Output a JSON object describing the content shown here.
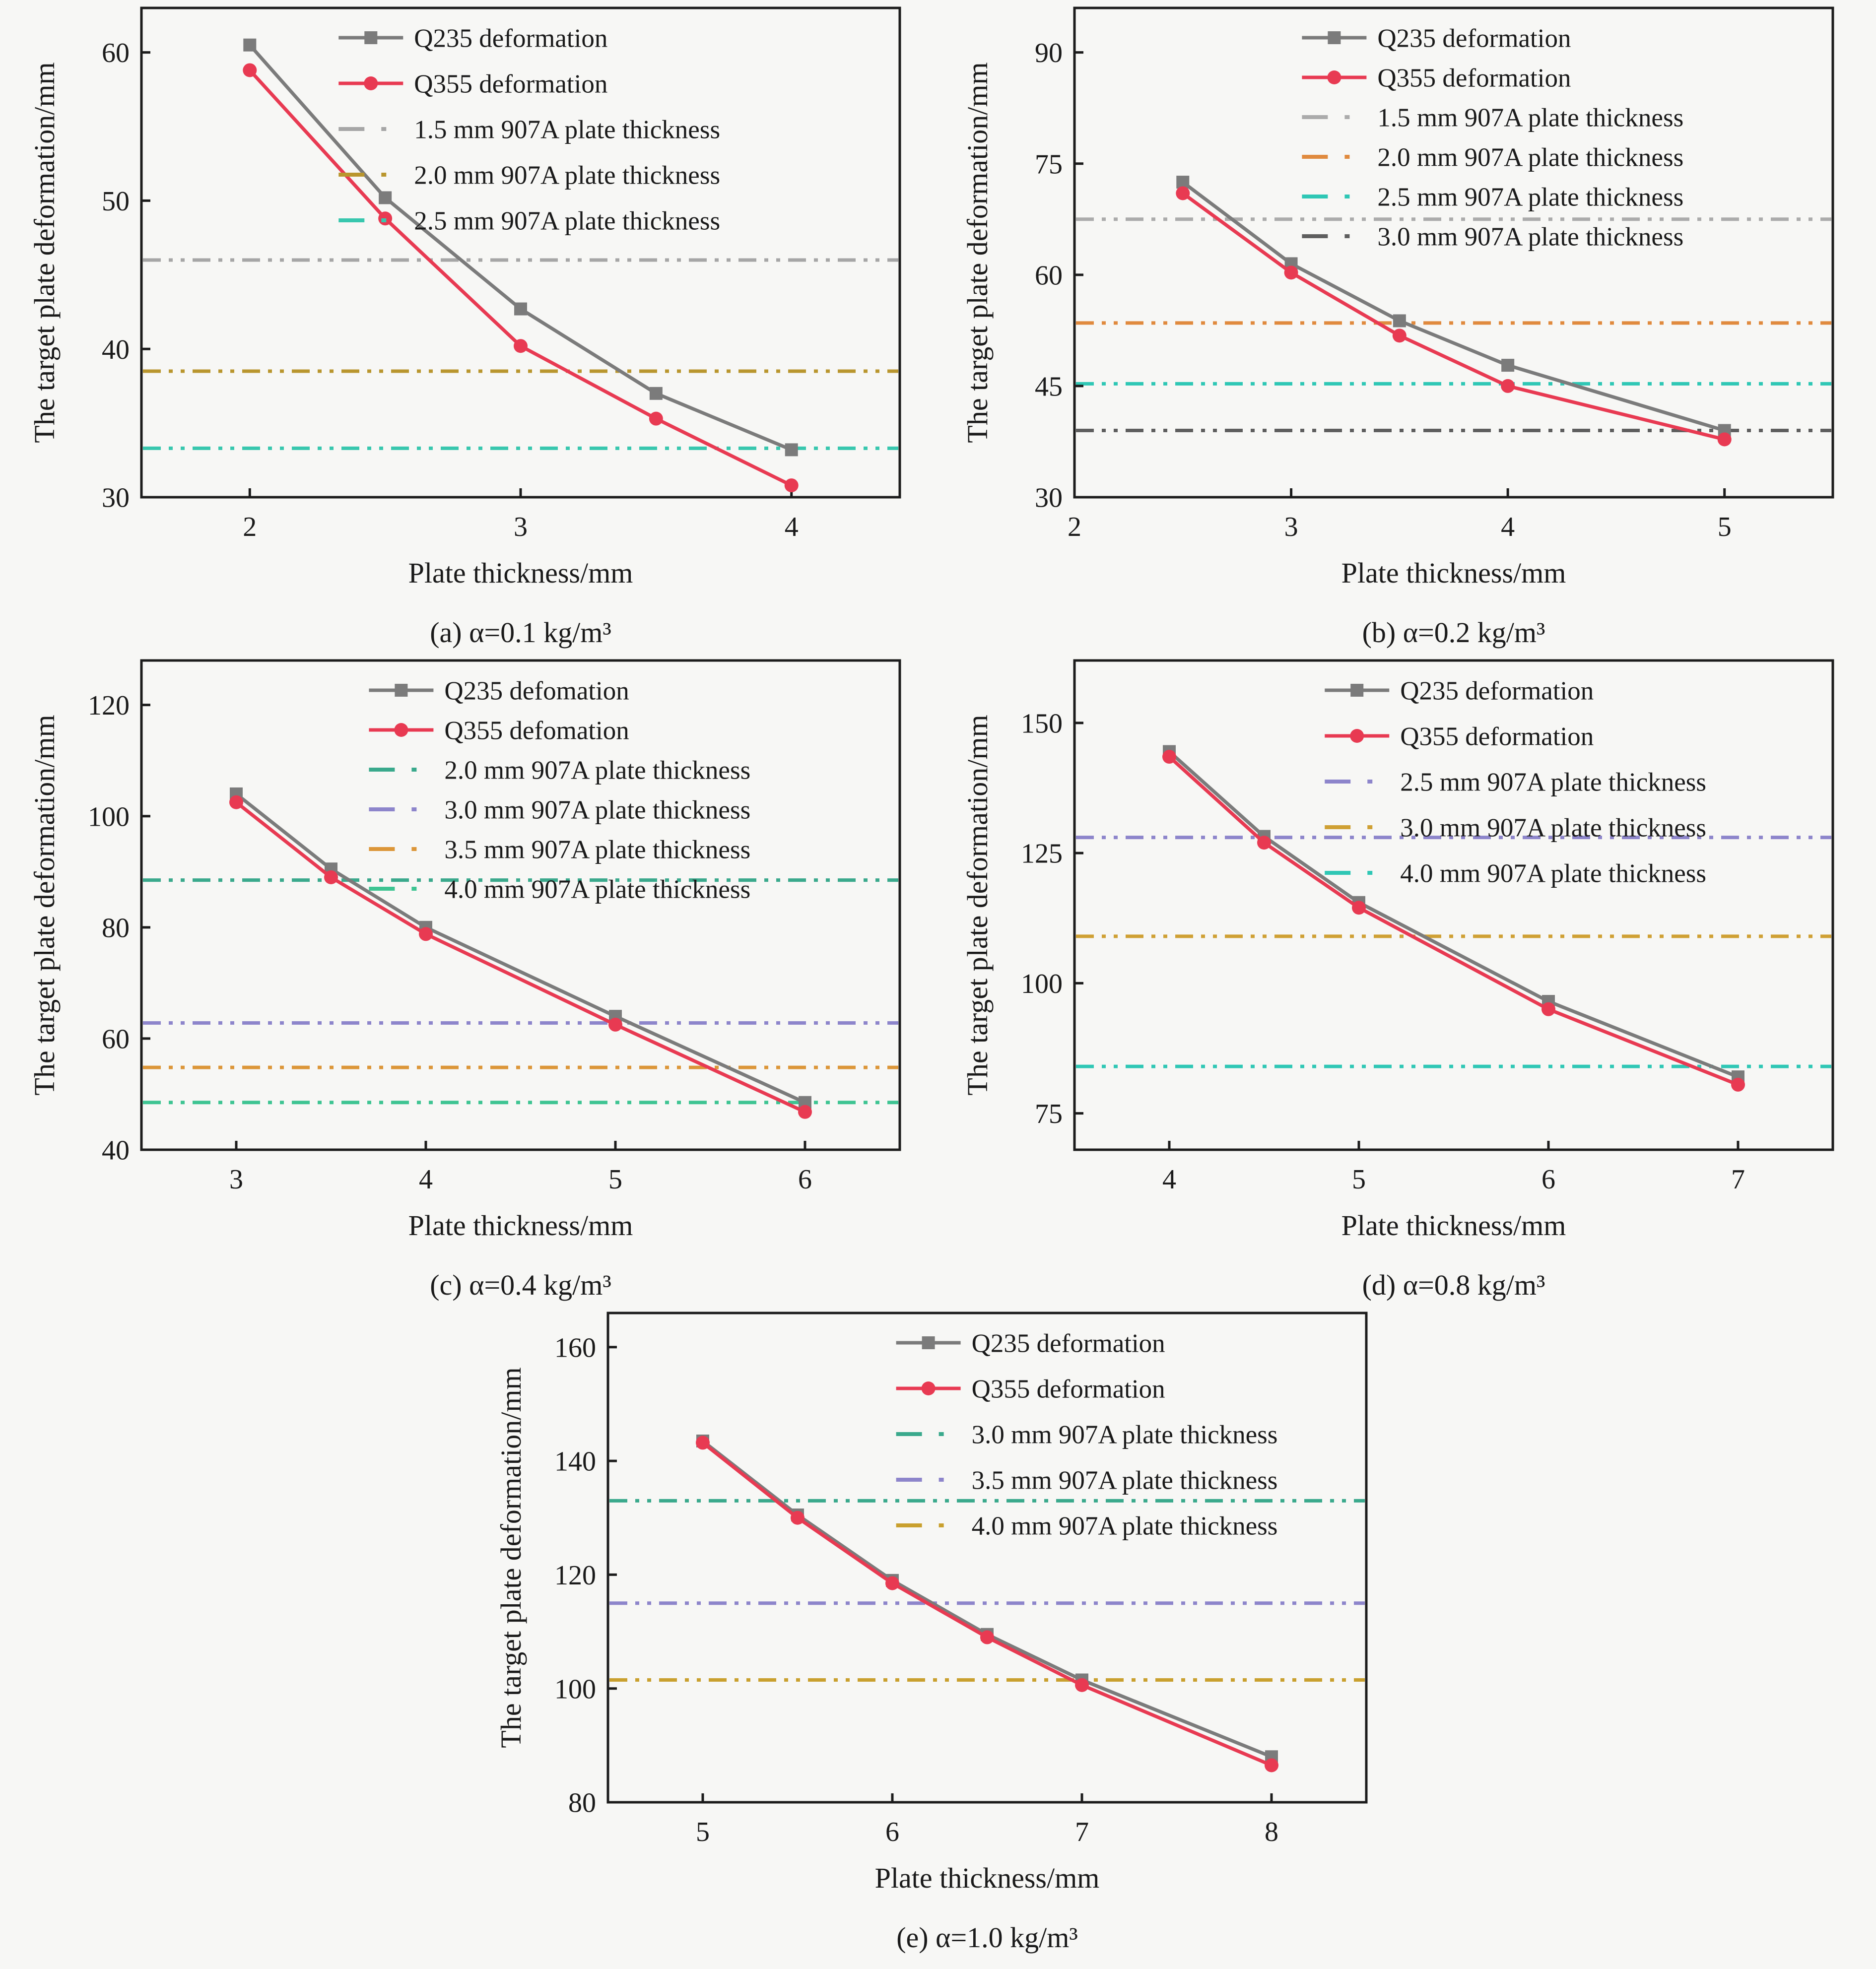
{
  "figure": {
    "xlabel": "Plate thickness/mm",
    "ylabel": "The target plate deformation/mm"
  },
  "chart_data": [
    {
      "id": "a",
      "type": "line",
      "caption": "(a) α=0.1 kg/m³",
      "xlabel": "Plate thickness/mm",
      "ylabel": "The target plate deformation/mm",
      "xlim": [
        1.6,
        4.4
      ],
      "ylim": [
        30,
        63
      ],
      "xticks": [
        2,
        3,
        4
      ],
      "yticks": [
        30,
        40,
        50,
        60
      ],
      "grid": false,
      "legend_position": "upper-center-inside",
      "legend_x": 0.26,
      "series": [
        {
          "name": "Q235 deformation",
          "color": "#7b7b7b",
          "marker": "square",
          "x": [
            2,
            2.5,
            3,
            3.5,
            4
          ],
          "y": [
            60.5,
            50.2,
            42.7,
            37.0,
            33.2
          ]
        },
        {
          "name": "Q355 deformation",
          "color": "#e83a52",
          "marker": "circle",
          "x": [
            2,
            2.5,
            3,
            3.5,
            4
          ],
          "y": [
            58.8,
            48.8,
            40.2,
            35.3,
            30.8
          ]
        }
      ],
      "hlines": [
        {
          "name": "1.5 mm 907A plate thickness",
          "y": 46.0,
          "color": "#a6a6a6"
        },
        {
          "name": "2.0 mm 907A plate thickness",
          "y": 38.5,
          "color": "#b9962e"
        },
        {
          "name": "2.5 mm 907A plate thickness",
          "y": 33.3,
          "color": "#38c7ae"
        }
      ]
    },
    {
      "id": "b",
      "type": "line",
      "caption": "(b) α=0.2 kg/m³",
      "xlabel": "Plate thickness/mm",
      "ylabel": "The target plate deformation/mm",
      "xlim": [
        2,
        5.5
      ],
      "ylim": [
        30,
        96
      ],
      "xticks": [
        2,
        3,
        4,
        5
      ],
      "yticks": [
        30,
        45,
        60,
        75,
        90
      ],
      "grid": false,
      "legend_position": "upper-center-inside",
      "legend_x": 0.3,
      "series": [
        {
          "name": "Q235 deformation",
          "color": "#7b7b7b",
          "marker": "square",
          "x": [
            2.5,
            3,
            3.5,
            4,
            5
          ],
          "y": [
            72.5,
            61.5,
            53.8,
            47.8,
            39.0
          ]
        },
        {
          "name": "Q355 deformation",
          "color": "#e83a52",
          "marker": "circle",
          "x": [
            2.5,
            3,
            3.5,
            4,
            5
          ],
          "y": [
            71.0,
            60.3,
            51.8,
            45.0,
            37.8
          ]
        }
      ],
      "hlines": [
        {
          "name": "1.5 mm 907A plate thickness",
          "y": 67.5,
          "color": "#ababab"
        },
        {
          "name": "2.0 mm 907A plate thickness",
          "y": 53.5,
          "color": "#e08a3e"
        },
        {
          "name": "2.5 mm 907A plate thickness",
          "y": 45.3,
          "color": "#2fc7b5"
        },
        {
          "name": "3.0 mm 907A plate thickness",
          "y": 39.0,
          "color": "#5e5e5e"
        }
      ]
    },
    {
      "id": "c",
      "type": "line",
      "caption": "(c) α=0.4 kg/m³",
      "xlabel": "Plate thickness/mm",
      "ylabel": "The target plate deformation/mm",
      "xlim": [
        2.5,
        6.5
      ],
      "ylim": [
        40,
        128
      ],
      "xticks": [
        3,
        4,
        5,
        6
      ],
      "yticks": [
        40,
        60,
        80,
        100,
        120
      ],
      "grid": false,
      "legend_position": "upper-center-inside",
      "legend_x": 0.3,
      "series": [
        {
          "name": "Q235 defomation",
          "color": "#7b7b7b",
          "marker": "square",
          "x": [
            3,
            3.5,
            4,
            5,
            6
          ],
          "y": [
            104.0,
            90.5,
            80.0,
            64.0,
            48.5
          ]
        },
        {
          "name": "Q355 defomation",
          "color": "#e83a52",
          "marker": "circle",
          "x": [
            3,
            3.5,
            4,
            5,
            6
          ],
          "y": [
            102.5,
            89.0,
            78.8,
            62.5,
            46.8
          ]
        }
      ],
      "hlines": [
        {
          "name": "2.0 mm 907A plate thickness",
          "y": 88.5,
          "color": "#3aa98c"
        },
        {
          "name": "3.0 mm 907A plate thickness",
          "y": 62.8,
          "color": "#8d85cb"
        },
        {
          "name": "3.5 mm 907A plate thickness",
          "y": 54.8,
          "color": "#dc9638"
        },
        {
          "name": "4.0 mm 907A plate thickness",
          "y": 48.5,
          "color": "#3ec492"
        }
      ]
    },
    {
      "id": "d",
      "type": "line",
      "caption": "(d) α=0.8 kg/m³",
      "xlabel": "Plate thickness/mm",
      "ylabel": "The target plate deformation/mm",
      "xlim": [
        3.5,
        7.5
      ],
      "ylim": [
        68,
        162
      ],
      "xticks": [
        4,
        5,
        6,
        7
      ],
      "yticks": [
        75,
        100,
        125,
        150
      ],
      "grid": false,
      "legend_position": "upper-center-inside",
      "legend_x": 0.33,
      "series": [
        {
          "name": "Q235 deformation",
          "color": "#7b7b7b",
          "marker": "square",
          "x": [
            4,
            4.5,
            5,
            6,
            7
          ],
          "y": [
            144.5,
            128.2,
            115.5,
            96.5,
            82.0
          ]
        },
        {
          "name": "Q355 deformation",
          "color": "#e83a52",
          "marker": "circle",
          "x": [
            4,
            4.5,
            5,
            6,
            7
          ],
          "y": [
            143.5,
            127.0,
            114.5,
            95.0,
            80.5
          ]
        }
      ],
      "hlines": [
        {
          "name": "2.5 mm 907A plate thickness",
          "y": 128.0,
          "color": "#8d85cb"
        },
        {
          "name": "3.0 mm 907A plate thickness",
          "y": 109.0,
          "color": "#cfa033"
        },
        {
          "name": "4.0 mm 907A plate thickness",
          "y": 84.0,
          "color": "#2fc7b5"
        }
      ]
    },
    {
      "id": "e",
      "type": "line",
      "caption": "(e) α=1.0 kg/m³",
      "xlabel": "Plate thickness/mm",
      "ylabel": "The target plate deformation/mm",
      "xlim": [
        4.5,
        8.5
      ],
      "ylim": [
        80,
        166
      ],
      "xticks": [
        5,
        6,
        7,
        8
      ],
      "yticks": [
        80,
        100,
        120,
        140,
        160
      ],
      "grid": false,
      "legend_position": "upper-center-inside",
      "legend_x": 0.38,
      "series": [
        {
          "name": "Q235 deformation",
          "color": "#7b7b7b",
          "marker": "square",
          "x": [
            5,
            5.5,
            6,
            6.5,
            7,
            8
          ],
          "y": [
            143.5,
            130.5,
            119.0,
            109.5,
            101.5,
            88.0
          ]
        },
        {
          "name": "Q355 deformation",
          "color": "#e83a52",
          "marker": "circle",
          "x": [
            5,
            5.5,
            6,
            6.5,
            7,
            8
          ],
          "y": [
            143.2,
            130.0,
            118.5,
            109.0,
            100.6,
            86.5
          ]
        }
      ],
      "hlines": [
        {
          "name": "3.0 mm 907A plate thickness",
          "y": 133.0,
          "color": "#3aa98c"
        },
        {
          "name": "3.5 mm 907A plate thickness",
          "y": 115.0,
          "color": "#8d85cb"
        },
        {
          "name": "4.0 mm 907A plate thickness",
          "y": 101.5,
          "color": "#c9a02e"
        }
      ]
    }
  ]
}
